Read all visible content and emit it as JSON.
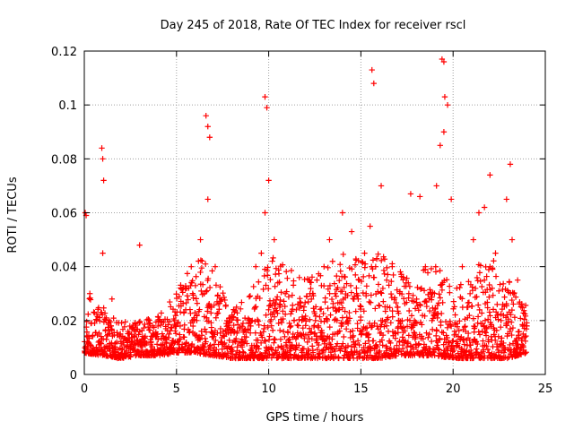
{
  "chart_data": {
    "type": "scatter",
    "title": "Day 245 of 2018, Rate Of TEC Index for receiver rscl",
    "xlabel": "GPS time / hours",
    "ylabel": "ROTI / TECUs",
    "xlim": [
      0,
      25
    ],
    "ylim": [
      0,
      0.12
    ],
    "xticks": [
      0,
      5,
      10,
      15,
      20,
      25
    ],
    "yticks": [
      0,
      0.02,
      0.04,
      0.06,
      0.08,
      0.1,
      0.12
    ],
    "xtick_labels": [
      "0",
      "5",
      "10",
      "15",
      "20",
      "25"
    ],
    "ytick_labels": [
      "0",
      "0.02",
      "0.04",
      "0.06",
      "0.08",
      "0.1",
      "0.12"
    ],
    "grid": true,
    "marker": "+",
    "color": "#ff0000",
    "data_extent_hours": [
      0,
      24
    ],
    "series": [
      {
        "name": "ROTI",
        "x": [
          0.05,
          0.1,
          0.15,
          0.3,
          0.5,
          0.8,
          1.0,
          1.2,
          1.5,
          1.8,
          2.0,
          2.3,
          2.6,
          3.0,
          3.3,
          3.6,
          4.0,
          4.3,
          4.6,
          4.9,
          5.2,
          5.5,
          5.8,
          6.1,
          6.3,
          6.5,
          6.7,
          6.9,
          7.1,
          7.4,
          7.7,
          8.0,
          8.3,
          8.6,
          9.0,
          9.3,
          9.6,
          9.8,
          10.0,
          10.3,
          10.6,
          10.9,
          11.2,
          11.5,
          11.8,
          12.1,
          12.4,
          12.7,
          13.0,
          13.3,
          13.6,
          14.0,
          14.3,
          14.6,
          14.9,
          15.2,
          15.5,
          15.8,
          16.1,
          16.4,
          16.7,
          17.0,
          17.3,
          17.6,
          17.9,
          18.2,
          18.5,
          18.8,
          19.1,
          19.3,
          19.5,
          19.7,
          19.9,
          20.2,
          20.5,
          20.8,
          21.1,
          21.4,
          21.7,
          22.0,
          22.3,
          22.6,
          22.9,
          23.2,
          23.5,
          23.8,
          24.0,
          0.95,
          1.0,
          1.05,
          6.6,
          6.7,
          6.8,
          9.8,
          9.9,
          15.6,
          15.7,
          19.4,
          19.5,
          19.55,
          23.1,
          22.0,
          21.7,
          14.5,
          17.7,
          18.2
        ],
        "y": [
          0.06,
          0.059,
          0.012,
          0.03,
          0.009,
          0.011,
          0.045,
          0.013,
          0.028,
          0.006,
          0.014,
          0.01,
          0.012,
          0.048,
          0.012,
          0.011,
          0.013,
          0.009,
          0.015,
          0.02,
          0.018,
          0.024,
          0.04,
          0.02,
          0.05,
          0.03,
          0.065,
          0.025,
          0.04,
          0.012,
          0.015,
          0.01,
          0.016,
          0.012,
          0.018,
          0.04,
          0.045,
          0.06,
          0.072,
          0.05,
          0.025,
          0.03,
          0.018,
          0.024,
          0.02,
          0.012,
          0.03,
          0.018,
          0.04,
          0.05,
          0.03,
          0.06,
          0.02,
          0.012,
          0.035,
          0.045,
          0.055,
          0.04,
          0.07,
          0.035,
          0.04,
          0.025,
          0.036,
          0.03,
          0.02,
          0.026,
          0.04,
          0.03,
          0.07,
          0.085,
          0.09,
          0.1,
          0.065,
          0.032,
          0.04,
          0.025,
          0.05,
          0.06,
          0.035,
          0.04,
          0.045,
          0.02,
          0.065,
          0.05,
          0.035,
          0.015,
          0.018,
          0.084,
          0.08,
          0.072,
          0.096,
          0.092,
          0.088,
          0.103,
          0.099,
          0.113,
          0.108,
          0.117,
          0.116,
          0.103,
          0.078,
          0.074,
          0.062,
          0.053,
          0.067,
          0.066
        ]
      }
    ],
    "density_profile": {
      "description": "Baseline scatter density envelope (hours -> typical ROTI band)",
      "hours": [
        0,
        1,
        2,
        3,
        4,
        5,
        6,
        7,
        8,
        9,
        10,
        11,
        12,
        13,
        14,
        15,
        16,
        17,
        18,
        19,
        20,
        21,
        22,
        23,
        24
      ],
      "low": [
        0.008,
        0.007,
        0.006,
        0.007,
        0.007,
        0.008,
        0.008,
        0.007,
        0.006,
        0.006,
        0.006,
        0.006,
        0.006,
        0.006,
        0.006,
        0.006,
        0.006,
        0.007,
        0.007,
        0.007,
        0.006,
        0.006,
        0.006,
        0.006,
        0.008
      ],
      "high": [
        0.03,
        0.025,
        0.02,
        0.02,
        0.022,
        0.03,
        0.045,
        0.04,
        0.025,
        0.03,
        0.045,
        0.04,
        0.035,
        0.04,
        0.045,
        0.045,
        0.045,
        0.04,
        0.035,
        0.045,
        0.03,
        0.04,
        0.045,
        0.035,
        0.025
      ]
    }
  }
}
